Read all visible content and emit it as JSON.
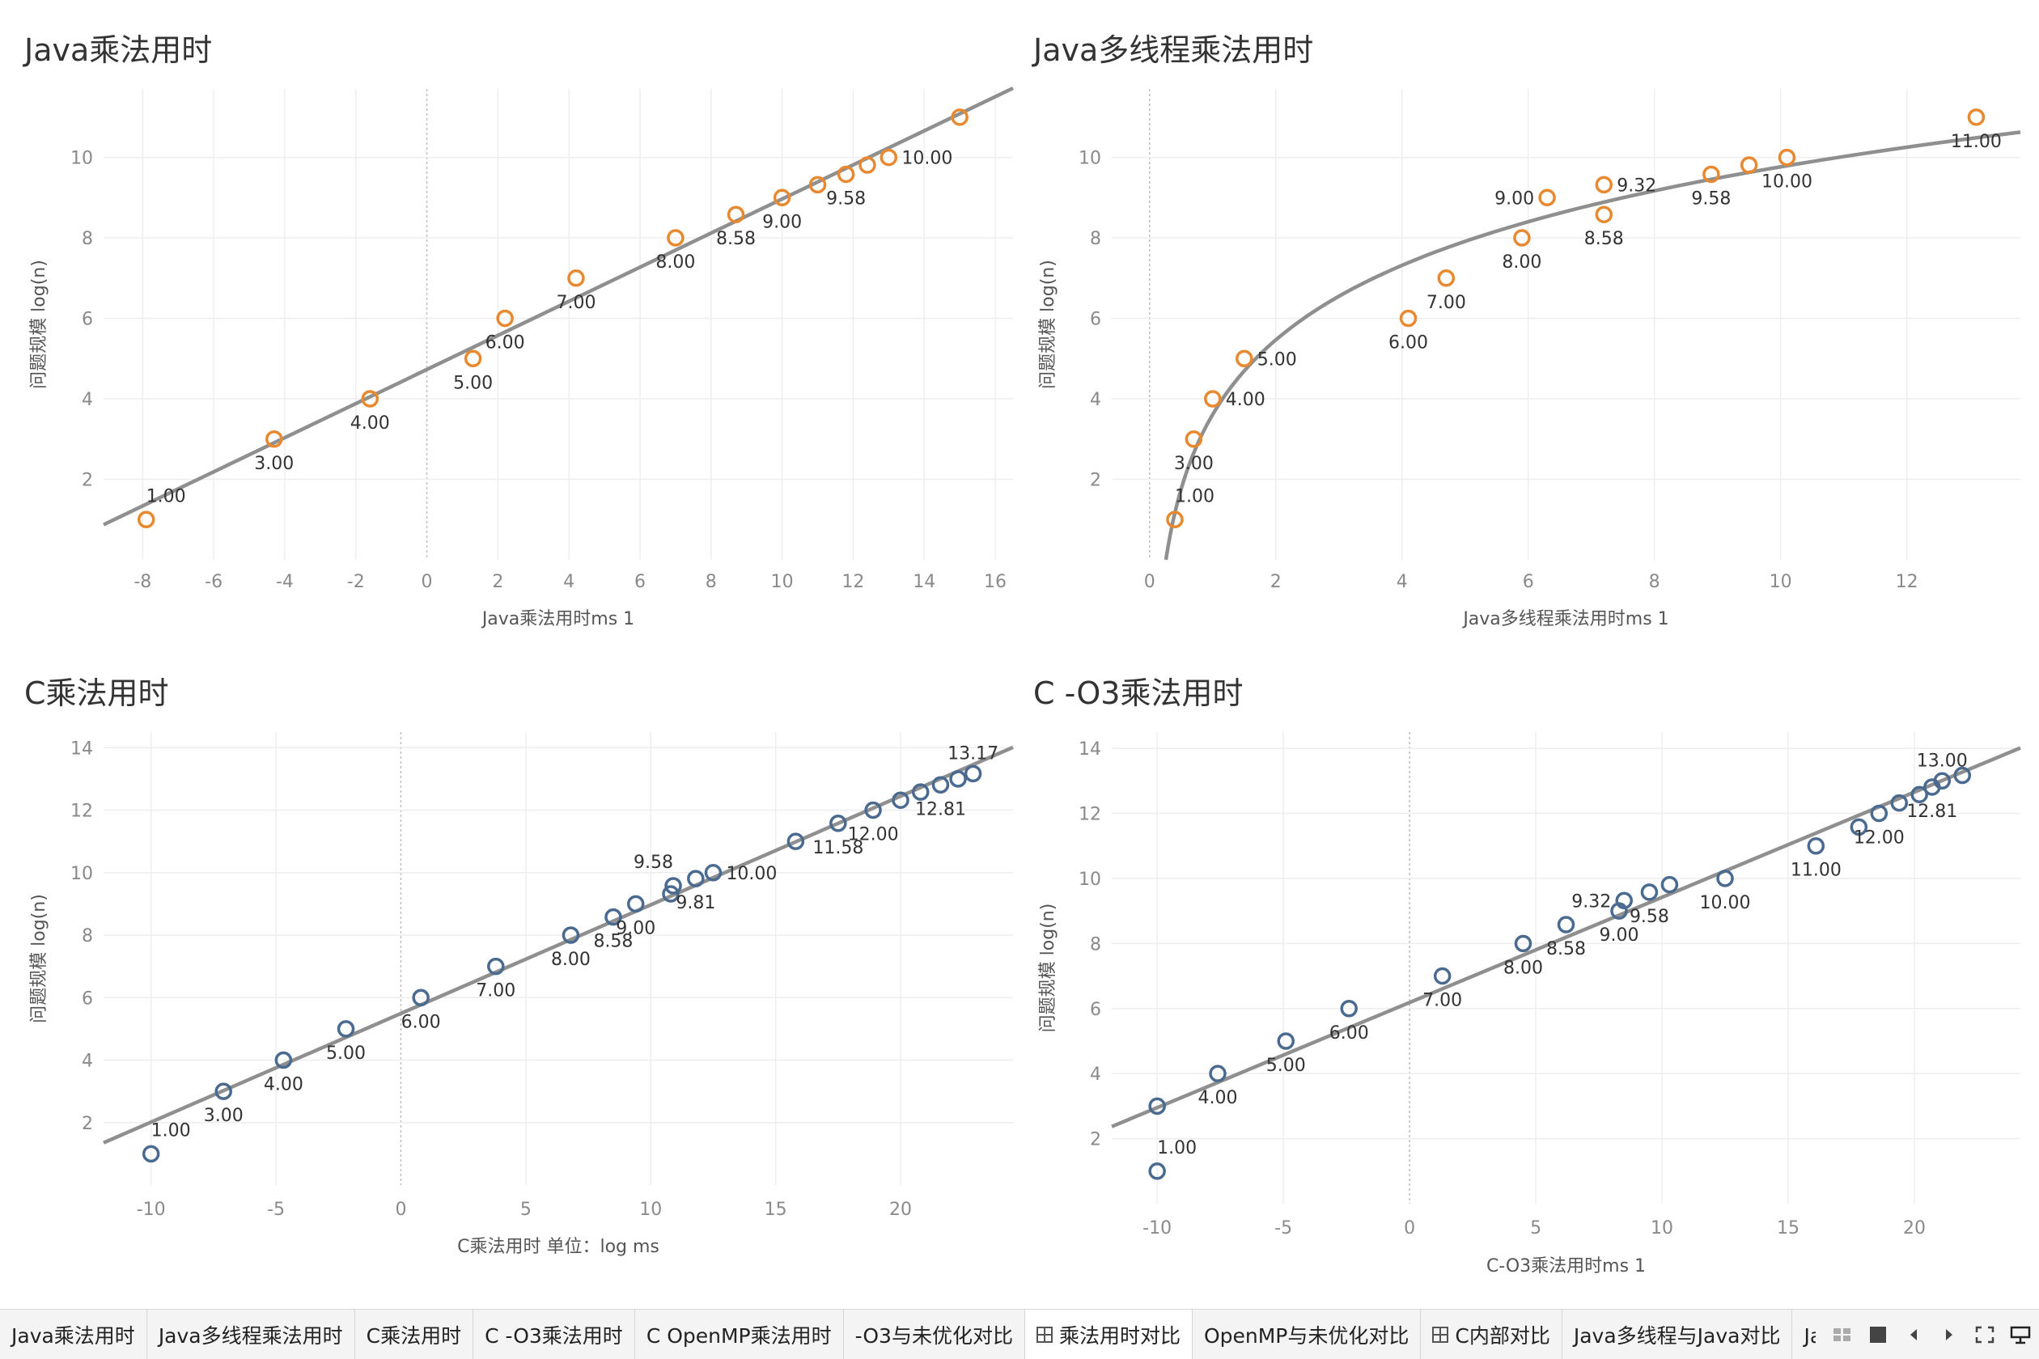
{
  "charts": [
    {
      "title": "Java乘法用时",
      "xlabel": "Java乘法用时ms 1",
      "ylabel": "问题规模 log(n)",
      "color": "#e8892f",
      "trend": "linear",
      "chart_data": {
        "type": "scatter",
        "xlim": [
          -9.1,
          16.5
        ],
        "ylim": [
          0,
          11.7
        ],
        "x_ticks": [
          "-8",
          "-6",
          "-4",
          "-2",
          "0",
          "2",
          "4",
          "6",
          "8",
          "10",
          "12",
          "14",
          "16"
        ],
        "y_ticks": [
          "2",
          "4",
          "6",
          "8",
          "10"
        ],
        "points": [
          {
            "x": -7.9,
            "y": 1.0,
            "label": "1.00",
            "lab": "tr"
          },
          {
            "x": -4.3,
            "y": 3.0,
            "label": "3.00",
            "lab": "b"
          },
          {
            "x": -1.6,
            "y": 4.0,
            "label": "4.00",
            "lab": "b"
          },
          {
            "x": 1.3,
            "y": 5.0,
            "label": "5.00",
            "lab": "b"
          },
          {
            "x": 2.2,
            "y": 6.0,
            "label": "6.00",
            "lab": "b"
          },
          {
            "x": 4.2,
            "y": 7.0,
            "label": "7.00",
            "lab": "b"
          },
          {
            "x": 7.0,
            "y": 8.0,
            "label": "8.00",
            "lab": "b"
          },
          {
            "x": 8.7,
            "y": 8.58,
            "label": "8.58",
            "lab": "b"
          },
          {
            "x": 10.0,
            "y": 9.0,
            "label": "9.00",
            "lab": "b"
          },
          {
            "x": 11.0,
            "y": 9.32,
            "label": "",
            "lab": "none"
          },
          {
            "x": 11.8,
            "y": 9.58,
            "label": "9.58",
            "lab": "b"
          },
          {
            "x": 12.4,
            "y": 9.81,
            "label": "",
            "lab": "none"
          },
          {
            "x": 13.0,
            "y": 10.0,
            "label": "10.00",
            "lab": "r"
          },
          {
            "x": 15.0,
            "y": 11.0,
            "label": "",
            "lab": "none"
          }
        ]
      }
    },
    {
      "title": "Java多线程乘法用时",
      "xlabel": "Java多线程乘法用时ms 1",
      "ylabel": "问题规模 log(n)",
      "color": "#e8892f",
      "trend": "log",
      "chart_data": {
        "type": "scatter",
        "xlim": [
          -0.6,
          13.8
        ],
        "ylim": [
          0,
          11.7
        ],
        "x_ticks": [
          "0",
          "2",
          "4",
          "6",
          "8",
          "10",
          "12"
        ],
        "y_ticks": [
          "2",
          "4",
          "6",
          "8",
          "10"
        ],
        "points": [
          {
            "x": 0.4,
            "y": 1.0,
            "label": "1.00",
            "lab": "tr"
          },
          {
            "x": 0.7,
            "y": 3.0,
            "label": "3.00",
            "lab": "b"
          },
          {
            "x": 1.0,
            "y": 4.0,
            "label": "4.00",
            "lab": "r"
          },
          {
            "x": 1.5,
            "y": 5.0,
            "label": "5.00",
            "lab": "r"
          },
          {
            "x": 4.1,
            "y": 6.0,
            "label": "6.00",
            "lab": "b"
          },
          {
            "x": 4.7,
            "y": 7.0,
            "label": "7.00",
            "lab": "b"
          },
          {
            "x": 5.9,
            "y": 8.0,
            "label": "8.00",
            "lab": "b"
          },
          {
            "x": 6.3,
            "y": 9.0,
            "label": "9.00",
            "lab": "l"
          },
          {
            "x": 7.2,
            "y": 9.32,
            "label": "9.32",
            "lab": "r"
          },
          {
            "x": 7.2,
            "y": 8.58,
            "label": "8.58",
            "lab": "b"
          },
          {
            "x": 8.9,
            "y": 9.58,
            "label": "9.58",
            "lab": "b"
          },
          {
            "x": 9.5,
            "y": 9.81,
            "label": "",
            "lab": "none"
          },
          {
            "x": 10.1,
            "y": 10.0,
            "label": "10.00",
            "lab": "b"
          },
          {
            "x": 13.1,
            "y": 11.0,
            "label": "11.00",
            "lab": "b"
          }
        ]
      }
    },
    {
      "title": "C乘法用时",
      "xlabel": "C乘法用时 单位：log ms",
      "ylabel": "问题规模 log(n)",
      "color": "#4a6a8f",
      "trend": "linear",
      "chart_data": {
        "type": "scatter",
        "xlim": [
          -11.9,
          24.5
        ],
        "ylim": [
          0,
          14.5
        ],
        "x_ticks": [
          "-10",
          "-5",
          "0",
          "5",
          "10",
          "15",
          "20"
        ],
        "y_ticks": [
          "2",
          "4",
          "6",
          "8",
          "10",
          "12",
          "14"
        ],
        "points": [
          {
            "x": -10.0,
            "y": 1.0,
            "label": "1.00",
            "lab": "tr"
          },
          {
            "x": -7.1,
            "y": 3.0,
            "label": "3.00",
            "lab": "b"
          },
          {
            "x": -4.7,
            "y": 4.0,
            "label": "4.00",
            "lab": "b"
          },
          {
            "x": -2.2,
            "y": 5.0,
            "label": "5.00",
            "lab": "b"
          },
          {
            "x": 0.8,
            "y": 6.0,
            "label": "6.00",
            "lab": "b"
          },
          {
            "x": 3.8,
            "y": 7.0,
            "label": "7.00",
            "lab": "b"
          },
          {
            "x": 6.8,
            "y": 8.0,
            "label": "8.00",
            "lab": "b"
          },
          {
            "x": 8.5,
            "y": 8.58,
            "label": "8.58",
            "lab": "b"
          },
          {
            "x": 9.4,
            "y": 9.0,
            "label": "9.00",
            "lab": "b"
          },
          {
            "x": 10.8,
            "y": 9.32,
            "label": "",
            "lab": "none"
          },
          {
            "x": 10.9,
            "y": 9.58,
            "label": "9.58",
            "lab": "tl"
          },
          {
            "x": 11.8,
            "y": 9.81,
            "label": "9.81",
            "lab": "b"
          },
          {
            "x": 12.5,
            "y": 10.0,
            "label": "10.00",
            "lab": "r"
          },
          {
            "x": 15.8,
            "y": 11.0,
            "label": "",
            "lab": "none"
          },
          {
            "x": 17.5,
            "y": 11.58,
            "label": "11.58",
            "lab": "b"
          },
          {
            "x": 18.9,
            "y": 12.0,
            "label": "12.00",
            "lab": "b"
          },
          {
            "x": 20.0,
            "y": 12.32,
            "label": "",
            "lab": "none"
          },
          {
            "x": 20.8,
            "y": 12.58,
            "label": "",
            "lab": "none"
          },
          {
            "x": 21.6,
            "y": 12.81,
            "label": "12.81",
            "lab": "b"
          },
          {
            "x": 22.3,
            "y": 13.0,
            "label": "",
            "lab": "none"
          },
          {
            "x": 22.9,
            "y": 13.17,
            "label": "13.17",
            "lab": "t"
          }
        ]
      }
    },
    {
      "title": "C -O3乘法用时",
      "xlabel": "C-O3乘法用时ms 1",
      "ylabel": "问题规模 log(n)",
      "color": "#4a6a8f",
      "trend": "linear",
      "chart_data": {
        "type": "scatter",
        "xlim": [
          -11.8,
          24.2
        ],
        "ylim": [
          0,
          14.5
        ],
        "x_ticks": [
          "-10",
          "-5",
          "0",
          "5",
          "10",
          "15",
          "20"
        ],
        "y_ticks": [
          "2",
          "4",
          "6",
          "8",
          "10",
          "12",
          "14"
        ],
        "points": [
          {
            "x": -10.0,
            "y": 1.0,
            "label": "1.00",
            "lab": "tr"
          },
          {
            "x": -10.0,
            "y": 3.0,
            "label": "",
            "lab": "none"
          },
          {
            "x": -7.6,
            "y": 4.0,
            "label": "4.00",
            "lab": "b"
          },
          {
            "x": -4.9,
            "y": 5.0,
            "label": "5.00",
            "lab": "b"
          },
          {
            "x": -2.4,
            "y": 6.0,
            "label": "6.00",
            "lab": "b"
          },
          {
            "x": 1.3,
            "y": 7.0,
            "label": "7.00",
            "lab": "b"
          },
          {
            "x": 4.5,
            "y": 8.0,
            "label": "8.00",
            "lab": "b"
          },
          {
            "x": 6.2,
            "y": 8.58,
            "label": "8.58",
            "lab": "b"
          },
          {
            "x": 8.3,
            "y": 9.0,
            "label": "9.00",
            "lab": "b"
          },
          {
            "x": 8.5,
            "y": 9.32,
            "label": "9.32",
            "lab": "l"
          },
          {
            "x": 9.5,
            "y": 9.58,
            "label": "9.58",
            "lab": "b"
          },
          {
            "x": 10.3,
            "y": 9.81,
            "label": "",
            "lab": "none"
          },
          {
            "x": 12.5,
            "y": 10.0,
            "label": "10.00",
            "lab": "b"
          },
          {
            "x": 16.1,
            "y": 11.0,
            "label": "11.00",
            "lab": "b"
          },
          {
            "x": 17.8,
            "y": 11.58,
            "label": "",
            "lab": "none"
          },
          {
            "x": 18.6,
            "y": 12.0,
            "label": "12.00",
            "lab": "b"
          },
          {
            "x": 19.4,
            "y": 12.32,
            "label": "",
            "lab": "none"
          },
          {
            "x": 20.2,
            "y": 12.58,
            "label": "",
            "lab": "none"
          },
          {
            "x": 20.7,
            "y": 12.81,
            "label": "12.81",
            "lab": "b"
          },
          {
            "x": 21.1,
            "y": 13.0,
            "label": "13.00",
            "lab": "t"
          },
          {
            "x": 21.9,
            "y": 13.17,
            "label": "",
            "lab": "none"
          }
        ]
      }
    }
  ],
  "tabs": [
    {
      "label": "Java乘法用时",
      "icon": "",
      "active": false
    },
    {
      "label": "Java多线程乘法用时",
      "icon": "",
      "active": false
    },
    {
      "label": "C乘法用时",
      "icon": "",
      "active": false
    },
    {
      "label": "C -O3乘法用时",
      "icon": "",
      "active": false
    },
    {
      "label": "C OpenMP乘法用时",
      "icon": "",
      "active": false
    },
    {
      "label": "-O3与未优化对比",
      "icon": "",
      "active": false
    },
    {
      "label": "乘法用时对比",
      "icon": "dashboard-grid-icon",
      "active": true
    },
    {
      "label": "OpenMP与未优化对比",
      "icon": "",
      "active": false
    },
    {
      "label": "C内部对比",
      "icon": "dashboard-grid-icon",
      "active": false
    },
    {
      "label": "Java多线程与Java对比",
      "icon": "",
      "active": false
    },
    {
      "label": "Java与",
      "icon": "",
      "active": false
    }
  ],
  "controls": [
    "sheet-sorter-icon",
    "filmstrip-icon",
    "prev-sheet-icon",
    "next-sheet-icon",
    "fullscreen-icon",
    "presentation-icon"
  ]
}
